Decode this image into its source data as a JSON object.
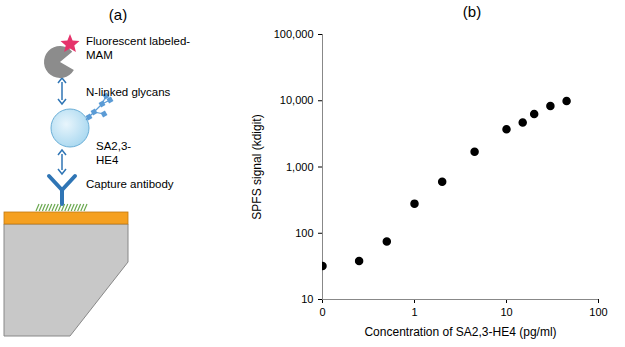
{
  "diagram": {
    "title": "(a)",
    "labels": [
      "Fluorescent labeled-MAM",
      "N-linked glycans",
      "SA2,3-HE4",
      "Capture antibody"
    ]
  },
  "chart_data": {
    "type": "scatter",
    "title": "(b)",
    "x_label": "Concentration of SA2,3-HE4 (pg/ml)",
    "y_label": "SPFS signal (kdigit)",
    "x": [
      0.1,
      0.25,
      0.5,
      1,
      2,
      4.5,
      10,
      15,
      20,
      30,
      45
    ],
    "values": [
      32,
      38,
      75,
      280,
      600,
      1700,
      3700,
      4700,
      6300,
      8300,
      9900
    ],
    "color": "#000000",
    "marker": "circle",
    "log": true,
    "xlim": [
      0.1,
      100
    ],
    "xticks": [
      {
        "value": 0.1,
        "label": "0"
      },
      1,
      10,
      100
    ],
    "ylim": [
      10,
      100000
    ],
    "yticks": [
      10,
      100,
      {
        "value": 1000,
        "label": "1,000"
      },
      {
        "value": 10000,
        "label": "10,000"
      },
      {
        "value": 100000,
        "label": "100,000"
      }
    ]
  }
}
